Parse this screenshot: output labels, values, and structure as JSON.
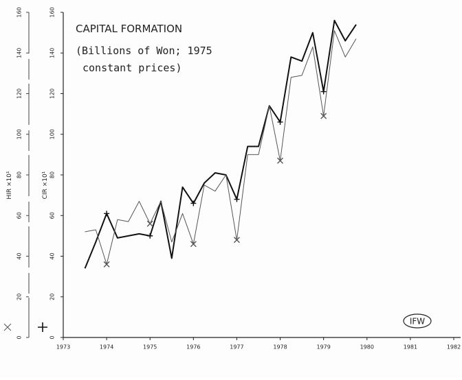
{
  "chart_data": {
    "type": "line",
    "title": "CAPITAL FORMATION",
    "subtitle": [
      "(Billions of Won; 1975",
      "constant prices)"
    ],
    "annotation": "IFW",
    "ylabel": "CIR ×10¹",
    "y2label": "HIR ×10¹",
    "xlim": [
      1973,
      1982
    ],
    "xticks": [
      1973,
      1974,
      1975,
      1976,
      1977,
      1978,
      1979,
      1980,
      1981,
      1982
    ],
    "ylim": [
      0,
      160
    ],
    "yticks": [
      0,
      20,
      40,
      60,
      80,
      100,
      120,
      140,
      160
    ],
    "y2lim": [
      0,
      160
    ],
    "y2ticks": [
      0,
      20,
      40,
      60,
      80,
      100,
      120,
      140,
      160
    ],
    "x": [
      1973.5,
      1973.75,
      1974,
      1974.25,
      1974.5,
      1974.75,
      1975,
      1975.25,
      1975.5,
      1975.75,
      1976,
      1976.25,
      1976.5,
      1976.75,
      1977,
      1977.25,
      1977.5,
      1977.75,
      1978,
      1978.25,
      1978.5,
      1978.75,
      1979,
      1979.25,
      1979.5,
      1979.75
    ],
    "series": [
      {
        "name": "CIR",
        "color": "#111111",
        "marker": "+",
        "axis": "y",
        "values": [
          34,
          47,
          61,
          49,
          50,
          51,
          50,
          67,
          39,
          74,
          66,
          76,
          81,
          80,
          68,
          94,
          94,
          114,
          106,
          138,
          136,
          150,
          121,
          156,
          146,
          154
        ]
      },
      {
        "name": "HIR",
        "color": "#555555",
        "marker": "x",
        "axis": "y2",
        "values": [
          52,
          53,
          36,
          58,
          57,
          67,
          56,
          67,
          47,
          61,
          46,
          75,
          72,
          80,
          48,
          90,
          90,
          114,
          87,
          128,
          129,
          143,
          109,
          151,
          138,
          147
        ]
      }
    ]
  }
}
